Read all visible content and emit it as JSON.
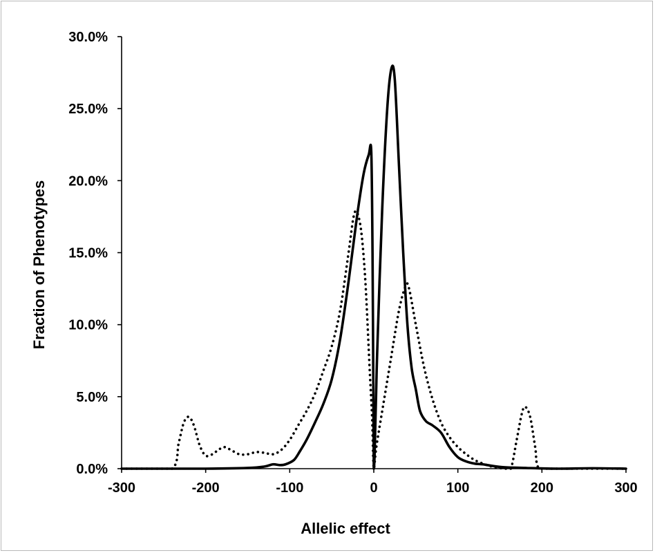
{
  "chart_data": {
    "type": "line",
    "title": "",
    "xlabel": "Allelic effect",
    "ylabel": "Fraction of Phenotypes",
    "xlim": [
      -300,
      300
    ],
    "ylim": [
      0,
      30
    ],
    "x_ticks": [
      -300,
      -200,
      -100,
      0,
      100,
      200,
      300
    ],
    "x_tick_labels": [
      "-300",
      "-200",
      "-100",
      "0",
      "100",
      "200",
      "300"
    ],
    "y_ticks": [
      0,
      5,
      10,
      15,
      20,
      25,
      30
    ],
    "y_tick_labels": [
      "0.0%",
      "5.0%",
      "10.0%",
      "15.0%",
      "20.0%",
      "25.0%",
      "30.0%"
    ],
    "grid": false,
    "legend": "none",
    "series": [
      {
        "style": "solid",
        "color": "#000000",
        "points": [
          [
            -300,
            0
          ],
          [
            -200,
            0
          ],
          [
            -150,
            0.05
          ],
          [
            -130,
            0.15
          ],
          [
            -120,
            0.3
          ],
          [
            -112,
            0.25
          ],
          [
            -105,
            0.3
          ],
          [
            -95,
            0.6
          ],
          [
            -88,
            1.2
          ],
          [
            -80,
            2.0
          ],
          [
            -70,
            3.2
          ],
          [
            -60,
            4.5
          ],
          [
            -50,
            6.2
          ],
          [
            -40,
            9.0
          ],
          [
            -30,
            13.0
          ],
          [
            -20,
            17.5
          ],
          [
            -12,
            20.5
          ],
          [
            -6,
            21.8
          ],
          [
            -3,
            22.0
          ],
          [
            -1.5,
            15.0
          ],
          [
            -0.5,
            5.0
          ],
          [
            0,
            0
          ],
          [
            1,
            1.0
          ],
          [
            4,
            8.0
          ],
          [
            10,
            18.0
          ],
          [
            16,
            25.0
          ],
          [
            21,
            27.8
          ],
          [
            25,
            27.0
          ],
          [
            30,
            21.0
          ],
          [
            35,
            15.0
          ],
          [
            40,
            10.0
          ],
          [
            45,
            7.0
          ],
          [
            50,
            5.5
          ],
          [
            55,
            4.0
          ],
          [
            62,
            3.3
          ],
          [
            70,
            3.0
          ],
          [
            80,
            2.5
          ],
          [
            90,
            1.5
          ],
          [
            100,
            0.8
          ],
          [
            110,
            0.5
          ],
          [
            120,
            0.35
          ],
          [
            130,
            0.3
          ],
          [
            140,
            0.2
          ],
          [
            155,
            0.1
          ],
          [
            180,
            0.05
          ],
          [
            220,
            0
          ],
          [
            260,
            0.03
          ],
          [
            300,
            0
          ]
        ]
      },
      {
        "style": "dotted",
        "color": "#000000",
        "points": [
          [
            -300,
            0
          ],
          [
            -240,
            0
          ],
          [
            -232,
            1.8
          ],
          [
            -226,
            3.2
          ],
          [
            -220,
            3.6
          ],
          [
            -214,
            3.0
          ],
          [
            -207,
            1.6
          ],
          [
            -200,
            0.9
          ],
          [
            -192,
            1.0
          ],
          [
            -185,
            1.3
          ],
          [
            -178,
            1.5
          ],
          [
            -170,
            1.3
          ],
          [
            -160,
            1.0
          ],
          [
            -150,
            1.0
          ],
          [
            -140,
            1.15
          ],
          [
            -130,
            1.1
          ],
          [
            -120,
            1.0
          ],
          [
            -110,
            1.3
          ],
          [
            -100,
            2.0
          ],
          [
            -90,
            3.0
          ],
          [
            -80,
            4.0
          ],
          [
            -70,
            5.2
          ],
          [
            -60,
            6.8
          ],
          [
            -50,
            8.5
          ],
          [
            -40,
            11.0
          ],
          [
            -30,
            15.0
          ],
          [
            -24,
            17.5
          ],
          [
            -20,
            17.8
          ],
          [
            -15,
            16.5
          ],
          [
            -10,
            13.0
          ],
          [
            -5,
            7.0
          ],
          [
            -2,
            3.5
          ],
          [
            0,
            0
          ],
          [
            3,
            1.5
          ],
          [
            10,
            4.0
          ],
          [
            20,
            7.5
          ],
          [
            30,
            11.0
          ],
          [
            38,
            12.7
          ],
          [
            42,
            12.5
          ],
          [
            50,
            10.0
          ],
          [
            60,
            7.0
          ],
          [
            70,
            4.8
          ],
          [
            80,
            3.2
          ],
          [
            90,
            2.2
          ],
          [
            100,
            1.5
          ],
          [
            110,
            1.0
          ],
          [
            120,
            0.6
          ],
          [
            130,
            0.35
          ],
          [
            140,
            0.15
          ],
          [
            155,
            0
          ],
          [
            163,
            0
          ],
          [
            170,
            2.0
          ],
          [
            176,
            3.8
          ],
          [
            180,
            4.3
          ],
          [
            186,
            3.6
          ],
          [
            192,
            1.5
          ],
          [
            197,
            0
          ],
          [
            240,
            0
          ],
          [
            300,
            0
          ]
        ]
      }
    ]
  }
}
